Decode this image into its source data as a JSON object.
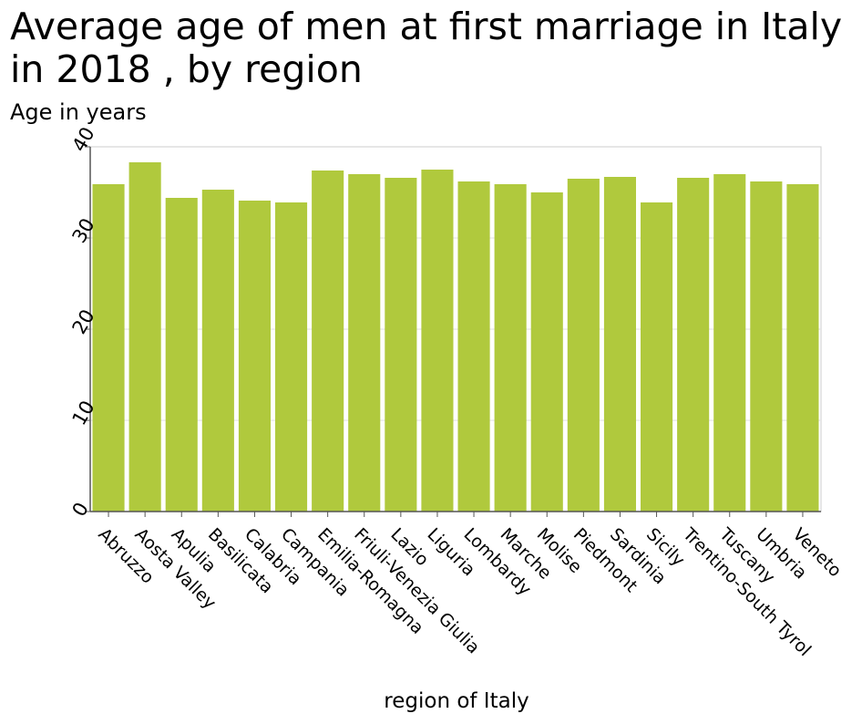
{
  "chart_data": {
    "type": "bar",
    "title": "Average age of men at first marriage in Italy in 2018 , by region",
    "subtitle": "Age in years",
    "xlabel": "region of Italy",
    "ylabel": "",
    "ylim": [
      0,
      40
    ],
    "yticks": [
      "0",
      "10",
      "20",
      "30",
      "40"
    ],
    "grid": true,
    "bar_color": "#b0c93d",
    "categories": [
      "Abruzzo",
      "Aosta Valley",
      "Apulia",
      "Basilicata",
      "Calabria",
      "Campania",
      "Emilia-Romagna",
      "Friuli-Venezia Giulia",
      "Lazio",
      "Liguria",
      "Lombardy",
      "Marche",
      "Molise",
      "Piedmont",
      "Sardinia",
      "Sicily",
      "Trentino-South Tyrol",
      "Tuscany",
      "Umbria",
      "Veneto"
    ],
    "values": [
      35.9,
      38.3,
      34.4,
      35.3,
      34.1,
      33.9,
      37.4,
      37.0,
      36.6,
      37.5,
      36.2,
      35.9,
      35.0,
      36.5,
      36.7,
      33.9,
      36.6,
      37.0,
      36.2,
      35.9
    ]
  }
}
